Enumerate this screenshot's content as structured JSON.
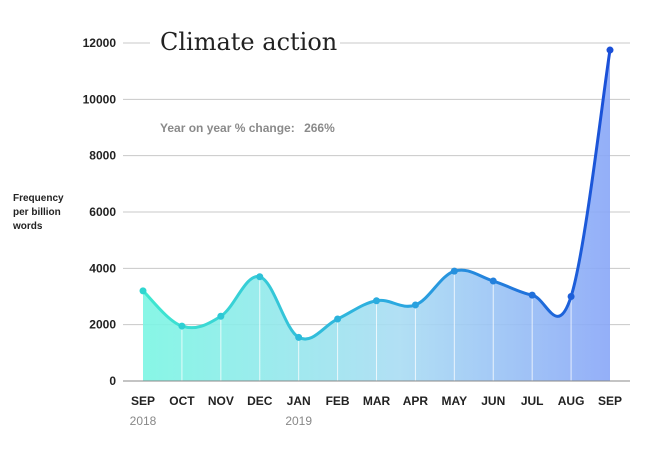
{
  "chart_data": {
    "type": "area",
    "title": "Climate action",
    "subtitle_label": "Year on year % change:",
    "subtitle_value": "266%",
    "ylabel_lines": [
      "Frequency",
      "per billion",
      "words"
    ],
    "xlabel": "",
    "categories": [
      "SEP",
      "OCT",
      "NOV",
      "DEC",
      "JAN",
      "FEB",
      "MAR",
      "APR",
      "MAY",
      "JUN",
      "JUL",
      "AUG",
      "SEP"
    ],
    "year_labels": [
      {
        "category_index": 0,
        "text": "2018"
      },
      {
        "category_index": 4,
        "text": "2019"
      }
    ],
    "values": [
      3200,
      1950,
      2300,
      3700,
      1550,
      2200,
      2850,
      2700,
      3900,
      3550,
      3050,
      3000,
      11750
    ],
    "yticks": [
      0,
      2000,
      4000,
      6000,
      8000,
      10000,
      12000
    ],
    "ylim": [
      0,
      12000
    ],
    "grid": true,
    "colors": {
      "start": "#3fe8d0",
      "end": "#1a4fd8",
      "fill_start": "#7af5e3",
      "fill_end": "#88a6f7",
      "grid": "#c8c8c8",
      "axis": "#888888"
    }
  }
}
